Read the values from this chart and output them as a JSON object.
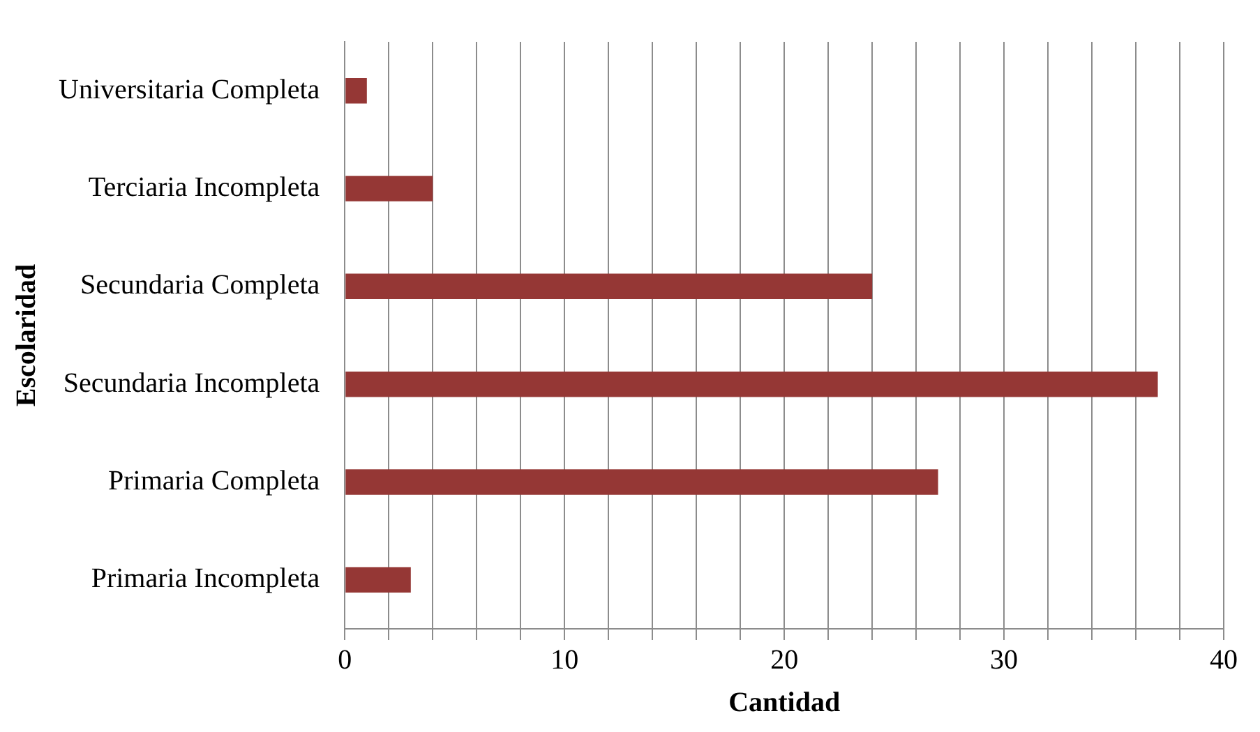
{
  "chart_data": {
    "type": "bar",
    "orientation": "horizontal",
    "xlabel": "Cantidad",
    "ylabel": "Escolaridad",
    "categories": [
      "Universitaria Completa",
      "Terciaria Incompleta",
      "Secundaria Completa",
      "Secundaria Incompleta",
      "Primaria Completa",
      "Primaria Incompleta"
    ],
    "values": [
      1,
      4,
      24,
      37,
      27,
      3
    ],
    "color": "#953735",
    "xlim": [
      0,
      40
    ],
    "xticks": [
      0,
      {
        "value": 2,
        "label": null
      },
      {
        "value": 4,
        "label": null
      },
      {
        "value": 6,
        "label": null
      },
      {
        "value": 8,
        "label": null
      },
      10,
      {
        "value": 12,
        "label": null
      },
      {
        "value": 14,
        "label": null
      },
      {
        "value": 16,
        "label": null
      },
      {
        "value": 18,
        "label": null
      },
      20,
      {
        "value": 22,
        "label": null
      },
      {
        "value": 24,
        "label": null
      },
      {
        "value": 26,
        "label": null
      },
      {
        "value": 28,
        "label": null
      },
      30,
      {
        "value": 32,
        "label": null
      },
      {
        "value": 34,
        "label": null
      },
      {
        "value": 36,
        "label": null
      },
      {
        "value": 38,
        "label": null
      },
      40
    ],
    "grid": "x",
    "legend": false
  }
}
